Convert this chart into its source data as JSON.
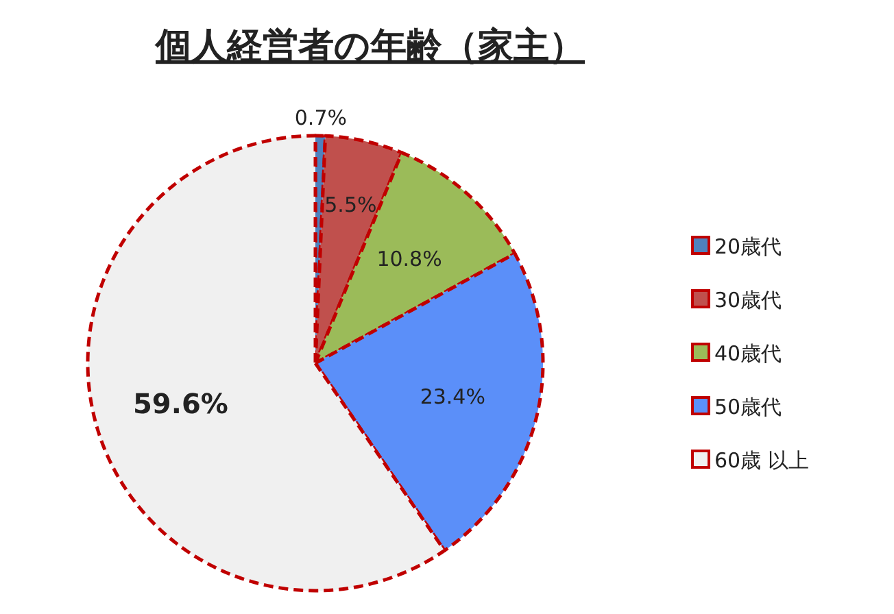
{
  "chart_data": {
    "type": "pie",
    "title": "個人経営者の年齢（家主）",
    "categories": [
      "20歳代",
      "30歳代",
      "40歳代",
      "50歳代",
      "60歳 以上"
    ],
    "values": [
      0.7,
      5.5,
      10.8,
      23.4,
      59.6
    ],
    "value_labels": [
      "0.7%",
      "5.5%",
      "10.8%",
      "23.4%",
      "59.6%"
    ],
    "colors": [
      "#4f81bd",
      "#c0504d",
      "#9bbb59",
      "#5b8ff9",
      "#f0f0f0"
    ],
    "line_style": "dashed",
    "legend": "right"
  }
}
